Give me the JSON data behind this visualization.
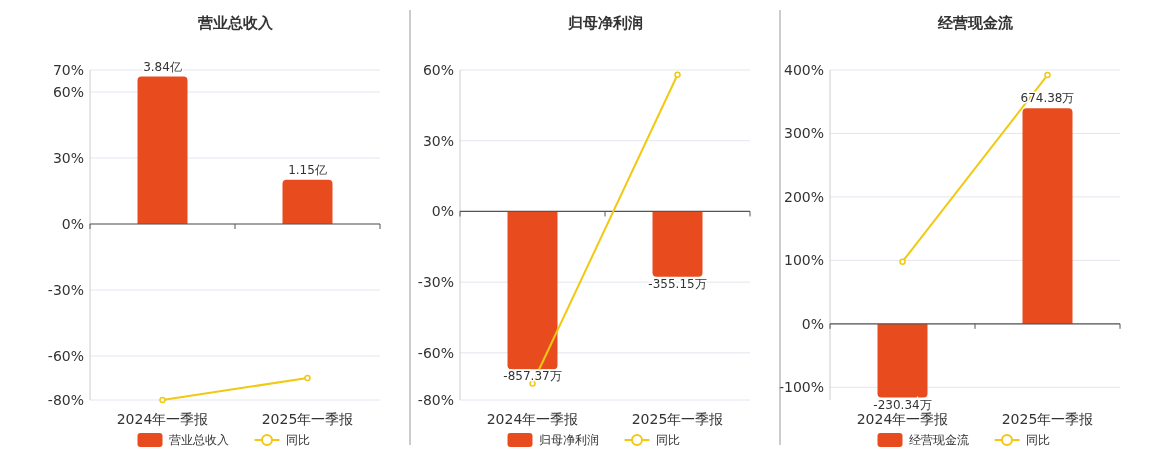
{
  "chart_data": [
    {
      "type": "bar",
      "title": "营业总收入",
      "categories": [
        "2024年一季报",
        "2025年一季报"
      ],
      "series": [
        {
          "name": "营业总收入",
          "axis": "y2",
          "color": "#e84c1e",
          "values": [
            3.84,
            1.15
          ],
          "value_labels": [
            "3.84亿",
            "1.15亿"
          ]
        },
        {
          "name": "同比",
          "type": "line",
          "color": "#f2c811",
          "values": [
            -80,
            -70
          ]
        }
      ],
      "ylim": [
        -80,
        70
      ],
      "yticks": [
        {
          "value": -80,
          "label": "-80%"
        },
        {
          "value": -60,
          "label": "-60%"
        },
        {
          "value": -30,
          "label": "-30%"
        },
        {
          "value": 0,
          "label": "0%"
        },
        {
          "value": 30,
          "label": "30%"
        },
        {
          "value": 60,
          "label": "60%"
        },
        {
          "value": 70,
          "label": "70%"
        }
      ],
      "y2lim": [
        -4.58,
        4.01
      ],
      "grid": "y",
      "legend": "bottom",
      "marker": "circle"
    },
    {
      "type": "bar",
      "title": "归母净利润",
      "categories": [
        "2024年一季报",
        "2025年一季报"
      ],
      "series": [
        {
          "name": "归母净利润",
          "axis": "y2",
          "color": "#e84c1e",
          "values": [
            -857.37,
            -355.15
          ],
          "value_labels": [
            "-857.37万",
            "-355.15万"
          ]
        },
        {
          "name": "同比",
          "type": "line",
          "color": "#f2c811",
          "values": [
            -73,
            58
          ]
        }
      ],
      "ylim": [
        -80,
        60
      ],
      "yticks": [
        {
          "value": -80,
          "label": "-80%"
        },
        {
          "value": -60,
          "label": "-60%"
        },
        {
          "value": -30,
          "label": "-30%"
        },
        {
          "value": 0,
          "label": "0%"
        },
        {
          "value": 30,
          "label": "30%"
        },
        {
          "value": 60,
          "label": "60%"
        }
      ],
      "y2lim": [
        -1024,
        768
      ],
      "grid": "y",
      "legend": "bottom",
      "marker": "circle"
    },
    {
      "type": "bar",
      "title": "经营现金流",
      "categories": [
        "2024年一季报",
        "2025年一季报"
      ],
      "series": [
        {
          "name": "经营现金流",
          "axis": "y2",
          "color": "#e84c1e",
          "values": [
            -230.34,
            674.38
          ],
          "value_labels": [
            "-230.34万",
            "674.38万"
          ]
        },
        {
          "name": "同比",
          "type": "line",
          "color": "#f2c811",
          "values": [
            98,
            392
          ]
        }
      ],
      "ylim": [
        -120,
        400
      ],
      "yticks": [
        {
          "value": -100,
          "label": "-100%"
        },
        {
          "value": 0,
          "label": "0%"
        },
        {
          "value": 100,
          "label": "100%"
        },
        {
          "value": 200,
          "label": "200%"
        },
        {
          "value": 300,
          "label": "300%"
        },
        {
          "value": 400,
          "label": "400%"
        }
      ],
      "y2lim": [
        -238,
        794
      ],
      "grid": "y",
      "legend": "bottom",
      "marker": "circle"
    }
  ]
}
